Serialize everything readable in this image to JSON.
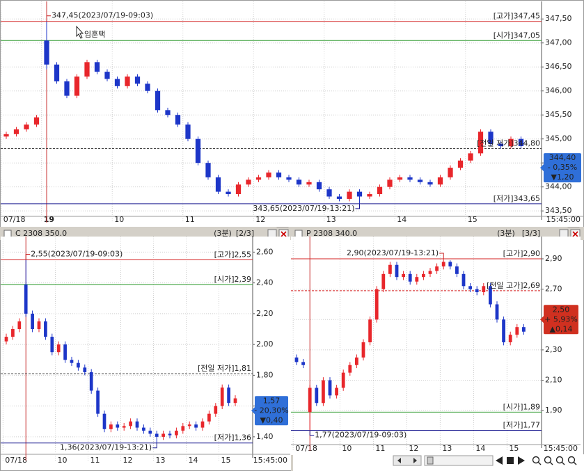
{
  "chart_data": [
    {
      "type": "candlestick",
      "cursor_label": "임훈택",
      "end_label": "15:45:00",
      "up_color": "#e8262b",
      "down_color": "#1d36c8",
      "grid": true,
      "ylim": [
        343.43,
        347.75
      ],
      "yticks": [
        {
          "value": 347.5,
          "label": "347,50"
        },
        {
          "value": 347.0,
          "label": "347,00"
        },
        {
          "value": 346.5,
          "label": "346,50"
        },
        {
          "value": 346.0,
          "label": "346,00"
        },
        {
          "value": 345.5,
          "label": "345,50"
        },
        {
          "value": 345.0,
          "label": "345,00"
        },
        {
          "value": 344.5,
          "label": "344,50"
        },
        {
          "value": 344.0,
          "label": "344,00"
        },
        {
          "value": 343.5,
          "label": "343,50"
        }
      ],
      "categories": [
        "07/18",
        null,
        null,
        null,
        "19",
        null,
        null,
        null,
        null,
        null,
        null,
        "10",
        null,
        null,
        null,
        null,
        null,
        null,
        "11",
        null,
        null,
        null,
        null,
        null,
        null,
        "12",
        null,
        null,
        null,
        null,
        null,
        null,
        "13",
        null,
        null,
        null,
        null,
        null,
        null,
        "14",
        null,
        null,
        null,
        null,
        null,
        null,
        "15",
        null,
        null,
        null,
        null,
        null
      ],
      "open": [
        345.05,
        345.1,
        345.2,
        345.3,
        347.05,
        346.55,
        346.2,
        345.9,
        346.3,
        346.6,
        346.4,
        346.25,
        346.1,
        346.3,
        346.15,
        346.0,
        345.6,
        345.5,
        345.3,
        345.0,
        344.5,
        344.2,
        343.9,
        343.85,
        344.05,
        344.15,
        344.2,
        344.3,
        344.2,
        344.15,
        344.05,
        344.1,
        343.95,
        343.8,
        343.75,
        343.9,
        343.8,
        343.85,
        344.0,
        344.15,
        344.2,
        344.15,
        344.1,
        344.05,
        344.2,
        344.4,
        344.55,
        344.7,
        345.15,
        344.9,
        344.85,
        345.0
      ],
      "high": [
        345.15,
        345.25,
        345.35,
        345.5,
        347.45,
        346.6,
        346.25,
        346.35,
        346.65,
        346.65,
        346.45,
        346.3,
        346.35,
        346.35,
        346.2,
        346.05,
        345.65,
        345.55,
        345.35,
        345.05,
        344.55,
        344.25,
        343.95,
        344.1,
        344.2,
        344.25,
        344.35,
        344.35,
        344.25,
        344.2,
        344.15,
        344.15,
        344.0,
        343.85,
        343.95,
        343.95,
        343.9,
        344.05,
        344.2,
        344.25,
        344.25,
        344.2,
        344.15,
        344.25,
        344.45,
        344.6,
        344.75,
        345.2,
        345.2,
        344.95,
        345.05,
        345.05
      ],
      "low": [
        345.0,
        345.05,
        345.15,
        345.25,
        346.45,
        346.15,
        345.85,
        345.85,
        346.25,
        346.35,
        346.2,
        346.05,
        346.05,
        346.1,
        345.95,
        345.55,
        345.45,
        345.25,
        344.95,
        344.45,
        344.15,
        343.85,
        343.8,
        343.8,
        344.0,
        344.1,
        344.15,
        344.15,
        344.1,
        344.0,
        344.0,
        343.9,
        343.75,
        343.7,
        343.7,
        343.65,
        343.75,
        343.8,
        343.95,
        344.1,
        344.1,
        344.05,
        344.0,
        344.0,
        344.15,
        344.35,
        344.5,
        344.65,
        344.85,
        344.8,
        344.8,
        344.8
      ],
      "close": [
        345.1,
        345.2,
        345.3,
        345.45,
        346.55,
        346.2,
        345.9,
        346.3,
        346.6,
        346.4,
        346.25,
        346.1,
        346.3,
        346.15,
        346.0,
        345.6,
        345.5,
        345.3,
        345.0,
        344.5,
        344.2,
        343.9,
        343.85,
        344.05,
        344.15,
        344.2,
        344.3,
        344.2,
        344.15,
        344.05,
        344.1,
        343.95,
        343.8,
        343.75,
        343.9,
        343.8,
        343.85,
        344.0,
        344.15,
        344.2,
        344.15,
        344.1,
        344.05,
        344.2,
        344.4,
        344.55,
        344.7,
        345.15,
        344.9,
        344.85,
        345.0,
        344.85
      ],
      "levels": [
        {
          "label": "[고가]347,45",
          "value": 347.45,
          "color": "#d42020",
          "dashed": false
        },
        {
          "label": "[시가]347,05",
          "value": 347.05,
          "color": "#2e9a2e",
          "dashed": false
        },
        {
          "label": "[전일 저가]344,80",
          "value": 344.8,
          "color": "#444444",
          "dashed": true
        },
        {
          "label": "[저가]343,65",
          "value": 343.65,
          "color": "#1a1a90",
          "dashed": false
        }
      ],
      "notes": [
        {
          "text": "347,45(2023/07/19-09:03)",
          "value": 347.45
        },
        {
          "text": "343,65(2023/07/19-13:21)",
          "value": 343.65
        }
      ],
      "price_box": {
        "value": 344.4,
        "lines": [
          "344,40",
          "- 0,35%",
          "▼1,20"
        ],
        "color": "#2f6fd8"
      }
    },
    {
      "type": "candlestick",
      "title": "C 2308 350.0",
      "interval": "(3분)",
      "page": "[2/3]",
      "end_label": "15:45:00",
      "up_color": "#e8262b",
      "down_color": "#1d36c8",
      "grid": true,
      "ylim": [
        1.3,
        2.665
      ],
      "yticks": [
        {
          "value": 2.6,
          "label": "2,60"
        },
        {
          "value": 2.4,
          "label": "2,40"
        },
        {
          "value": 2.2,
          "label": "2,20"
        },
        {
          "value": 2.0,
          "label": "2,00"
        },
        {
          "value": 1.8,
          "label": "1,80"
        },
        {
          "value": 1.6,
          "label": "1,60"
        },
        {
          "value": 1.4,
          "label": "1,40"
        }
      ],
      "categories": [
        "07/18",
        null,
        null,
        null,
        null,
        null,
        null,
        null,
        "10",
        null,
        null,
        null,
        null,
        "11",
        null,
        null,
        null,
        null,
        "12",
        null,
        null,
        null,
        null,
        "13",
        null,
        null,
        null,
        null,
        "14",
        null,
        null,
        null,
        null,
        "15",
        null,
        null
      ],
      "open": [
        2.02,
        2.05,
        2.1,
        2.39,
        2.2,
        2.1,
        2.15,
        2.05,
        1.95,
        2.0,
        1.9,
        1.88,
        1.85,
        1.82,
        1.7,
        1.55,
        1.45,
        1.48,
        1.46,
        1.47,
        1.5,
        1.46,
        1.44,
        1.42,
        1.4,
        1.42,
        1.41,
        1.44,
        1.47,
        1.48,
        1.46,
        1.5,
        1.55,
        1.6,
        1.72,
        1.62
      ],
      "high": [
        2.07,
        2.12,
        2.17,
        2.55,
        2.22,
        2.17,
        2.17,
        2.07,
        2.02,
        2.02,
        1.92,
        1.9,
        1.87,
        1.84,
        1.72,
        1.57,
        1.5,
        1.5,
        1.49,
        1.52,
        1.52,
        1.48,
        1.46,
        1.44,
        1.44,
        1.44,
        1.46,
        1.49,
        1.5,
        1.5,
        1.52,
        1.57,
        1.62,
        1.74,
        1.74,
        1.67
      ],
      "low": [
        2.0,
        2.03,
        2.08,
        2.18,
        2.08,
        2.08,
        2.03,
        1.93,
        1.93,
        1.88,
        1.86,
        1.83,
        1.8,
        1.68,
        1.53,
        1.43,
        1.43,
        1.44,
        1.44,
        1.45,
        1.44,
        1.42,
        1.4,
        1.36,
        1.38,
        1.39,
        1.39,
        1.42,
        1.45,
        1.44,
        1.44,
        1.48,
        1.53,
        1.58,
        1.6,
        1.6
      ],
      "close": [
        2.05,
        2.1,
        2.15,
        2.2,
        2.1,
        2.15,
        2.05,
        1.95,
        2.0,
        1.9,
        1.88,
        1.85,
        1.82,
        1.7,
        1.55,
        1.45,
        1.48,
        1.46,
        1.47,
        1.5,
        1.46,
        1.44,
        1.42,
        1.4,
        1.42,
        1.41,
        1.44,
        1.47,
        1.48,
        1.46,
        1.5,
        1.55,
        1.6,
        1.72,
        1.62,
        1.65
      ],
      "levels": [
        {
          "label": "[고가]2,55",
          "value": 2.55,
          "color": "#d42020",
          "dashed": false
        },
        {
          "label": "[시가]2,39",
          "value": 2.39,
          "color": "#2e9a2e",
          "dashed": false
        },
        {
          "label": "[전일 저가]1,81",
          "value": 1.81,
          "color": "#444444",
          "dashed": true
        },
        {
          "label": "[저가]1,36",
          "value": 1.36,
          "color": "#1a1a90",
          "dashed": false
        }
      ],
      "notes": [
        {
          "text": "2,55(2023/07/19-09:03)",
          "value": 2.55
        },
        {
          "text": "1,36(2023/07/19-13:21)",
          "value": 1.36
        }
      ],
      "price_box": {
        "value": 1.57,
        "lines": [
          "1,57",
          "- 20,30%",
          "▼0,40"
        ],
        "color": "#2f6fd8"
      }
    },
    {
      "type": "candlestick",
      "title": "P 2308 340.0",
      "interval": "(3분)",
      "page": "[3/3]",
      "end_label": "15:45:00",
      "up_color": "#e8262b",
      "down_color": "#1d36c8",
      "grid": true,
      "ylim": [
        1.69,
        3.01
      ],
      "yticks": [
        {
          "value": 2.9,
          "label": "2,90"
        },
        {
          "value": 2.7,
          "label": "2,70"
        },
        {
          "value": 2.5,
          "label": "2,50"
        },
        {
          "value": 2.3,
          "label": "2,30"
        },
        {
          "value": 2.1,
          "label": "2,10"
        },
        {
          "value": 1.9,
          "label": "1,90"
        }
      ],
      "categories": [
        "07/18",
        null,
        null,
        null,
        null,
        null,
        null,
        "10",
        null,
        null,
        null,
        null,
        "11",
        null,
        null,
        null,
        null,
        "12",
        null,
        null,
        null,
        null,
        "13",
        null,
        null,
        null,
        null,
        "14",
        null,
        null,
        null,
        null,
        "15",
        null,
        null
      ],
      "open": [
        2.25,
        2.22,
        1.89,
        2.05,
        1.95,
        2.1,
        2.0,
        2.05,
        2.15,
        2.2,
        2.25,
        2.35,
        2.5,
        2.7,
        2.8,
        2.86,
        2.78,
        2.8,
        2.75,
        2.78,
        2.8,
        2.82,
        2.85,
        2.88,
        2.85,
        2.8,
        2.72,
        2.7,
        2.68,
        2.72,
        2.6,
        2.5,
        2.35,
        2.4,
        2.45
      ],
      "high": [
        2.27,
        2.24,
        2.07,
        2.07,
        2.12,
        2.12,
        2.07,
        2.17,
        2.22,
        2.27,
        2.37,
        2.52,
        2.72,
        2.82,
        2.88,
        2.88,
        2.82,
        2.82,
        2.8,
        2.82,
        2.84,
        2.87,
        2.9,
        2.89,
        2.87,
        2.82,
        2.74,
        2.72,
        2.74,
        2.74,
        2.62,
        2.52,
        2.42,
        2.47,
        2.47
      ],
      "low": [
        2.2,
        2.18,
        1.77,
        1.93,
        1.93,
        1.98,
        1.98,
        2.03,
        2.13,
        2.18,
        2.23,
        2.33,
        2.48,
        2.68,
        2.78,
        2.76,
        2.76,
        2.73,
        2.73,
        2.76,
        2.78,
        2.8,
        2.83,
        2.83,
        2.78,
        2.7,
        2.68,
        2.66,
        2.66,
        2.58,
        2.48,
        2.33,
        2.33,
        2.38,
        2.4
      ],
      "close": [
        2.22,
        2.2,
        2.05,
        1.95,
        2.1,
        2.0,
        2.05,
        2.15,
        2.2,
        2.25,
        2.35,
        2.5,
        2.7,
        2.8,
        2.86,
        2.78,
        2.8,
        2.75,
        2.78,
        2.8,
        2.82,
        2.85,
        2.88,
        2.85,
        2.8,
        2.72,
        2.7,
        2.68,
        2.72,
        2.6,
        2.5,
        2.35,
        2.4,
        2.45,
        2.42
      ],
      "levels": [
        {
          "label": "[고가]2,90",
          "value": 2.9,
          "color": "#d42020",
          "dashed": false
        },
        {
          "label": "[전일 고가]2,69",
          "value": 2.69,
          "color": "#d42020",
          "dashed": true
        },
        {
          "label": "[시가]1,89",
          "value": 1.89,
          "color": "#2e9a2e",
          "dashed": false
        },
        {
          "label": "[저가]1,77",
          "value": 1.77,
          "color": "#1a1a90",
          "dashed": false
        }
      ],
      "notes": [
        {
          "text": "1,77(2023/07/19-09:03)",
          "value": 1.77
        },
        {
          "text": "2,90(2023/07/19-13:21)",
          "value": 2.9
        }
      ],
      "price_box": {
        "value": 2.5,
        "lines": [
          "2,50",
          "+ 5,93%",
          "▲0,14"
        ],
        "color": "#d03020"
      }
    }
  ]
}
